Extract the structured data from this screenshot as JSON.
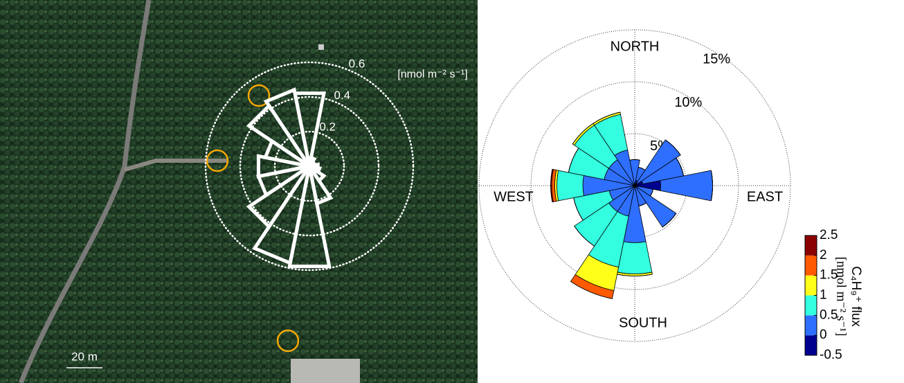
{
  "chart_data": [
    {
      "type": "polar_bar",
      "unit_label": "[nmol m⁻² s⁻¹]",
      "annotations": [
        "20 m"
      ],
      "x": [
        0,
        22.5,
        45,
        67.5,
        90,
        112.5,
        135,
        157.5,
        180,
        202.5,
        225,
        247.5,
        270,
        292.5,
        315,
        337.5
      ],
      "values": [
        0.43,
        0.05,
        0.03,
        0.03,
        0.05,
        0.06,
        0.1,
        0.22,
        0.59,
        0.57,
        0.42,
        0.3,
        0.3,
        0.26,
        0.42,
        0.45
      ],
      "rlim": [
        0,
        0.6
      ],
      "rticks": [
        0.2,
        0.4,
        0.6
      ],
      "color": "#ffffff"
    },
    {
      "type": "wind_rose",
      "direction_labels": [
        "NORTH",
        "EAST",
        "SOUTH",
        "WEST"
      ],
      "x": [
        0,
        22.5,
        45,
        67.5,
        90,
        112.5,
        135,
        157.5,
        180,
        202.5,
        225,
        247.5,
        270,
        292.5,
        315,
        337.5
      ],
      "series": [
        {
          "color": "#00008f",
          "values": [
            0,
            0.5,
            0.3,
            0.8,
            2.5,
            0.3,
            0,
            0,
            0,
            0,
            0,
            0,
            0,
            0,
            0,
            0
          ]
        },
        {
          "color": "#2f6fff",
          "values": [
            2.5,
            1.3,
            5,
            4,
            5,
            1.5,
            4.8,
            2,
            5.5,
            3,
            3,
            2.5,
            5,
            3,
            3,
            3.5
          ]
        },
        {
          "color": "#33ffe0",
          "values": [
            0,
            0,
            0,
            0,
            0,
            0,
            0,
            0,
            3,
            5,
            4,
            3.5,
            2.5,
            3.5,
            4,
            3.5
          ]
        },
        {
          "color": "#ffff1a",
          "values": [
            0,
            0,
            0,
            0,
            0,
            0,
            0,
            0,
            0.2,
            2.3,
            0,
            0,
            0.2,
            0,
            0.2,
            0.2
          ]
        },
        {
          "color": "#ff5a00",
          "values": [
            0,
            0,
            0,
            0,
            0,
            0,
            0,
            0,
            0,
            0.8,
            0,
            0,
            0.3,
            0,
            0,
            0
          ]
        },
        {
          "color": "#8b0000",
          "values": [
            0,
            0,
            0,
            0,
            0,
            0,
            0,
            0,
            0,
            0,
            0,
            0,
            0.1,
            0,
            0,
            0
          ]
        }
      ],
      "rlim": [
        0,
        15
      ],
      "rticks": [
        {
          "value": 5,
          "label": "5%"
        },
        {
          "value": 10,
          "label": "10%"
        },
        {
          "value": 15,
          "label": "15%"
        }
      ],
      "colorbar": {
        "ticks": [
          -0.5,
          0,
          0.5,
          1,
          1.5,
          2,
          2.5
        ],
        "label": [
          "C₄H₉⁺ flux",
          "[nmol m⁻² s⁻¹]"
        ]
      }
    }
  ]
}
